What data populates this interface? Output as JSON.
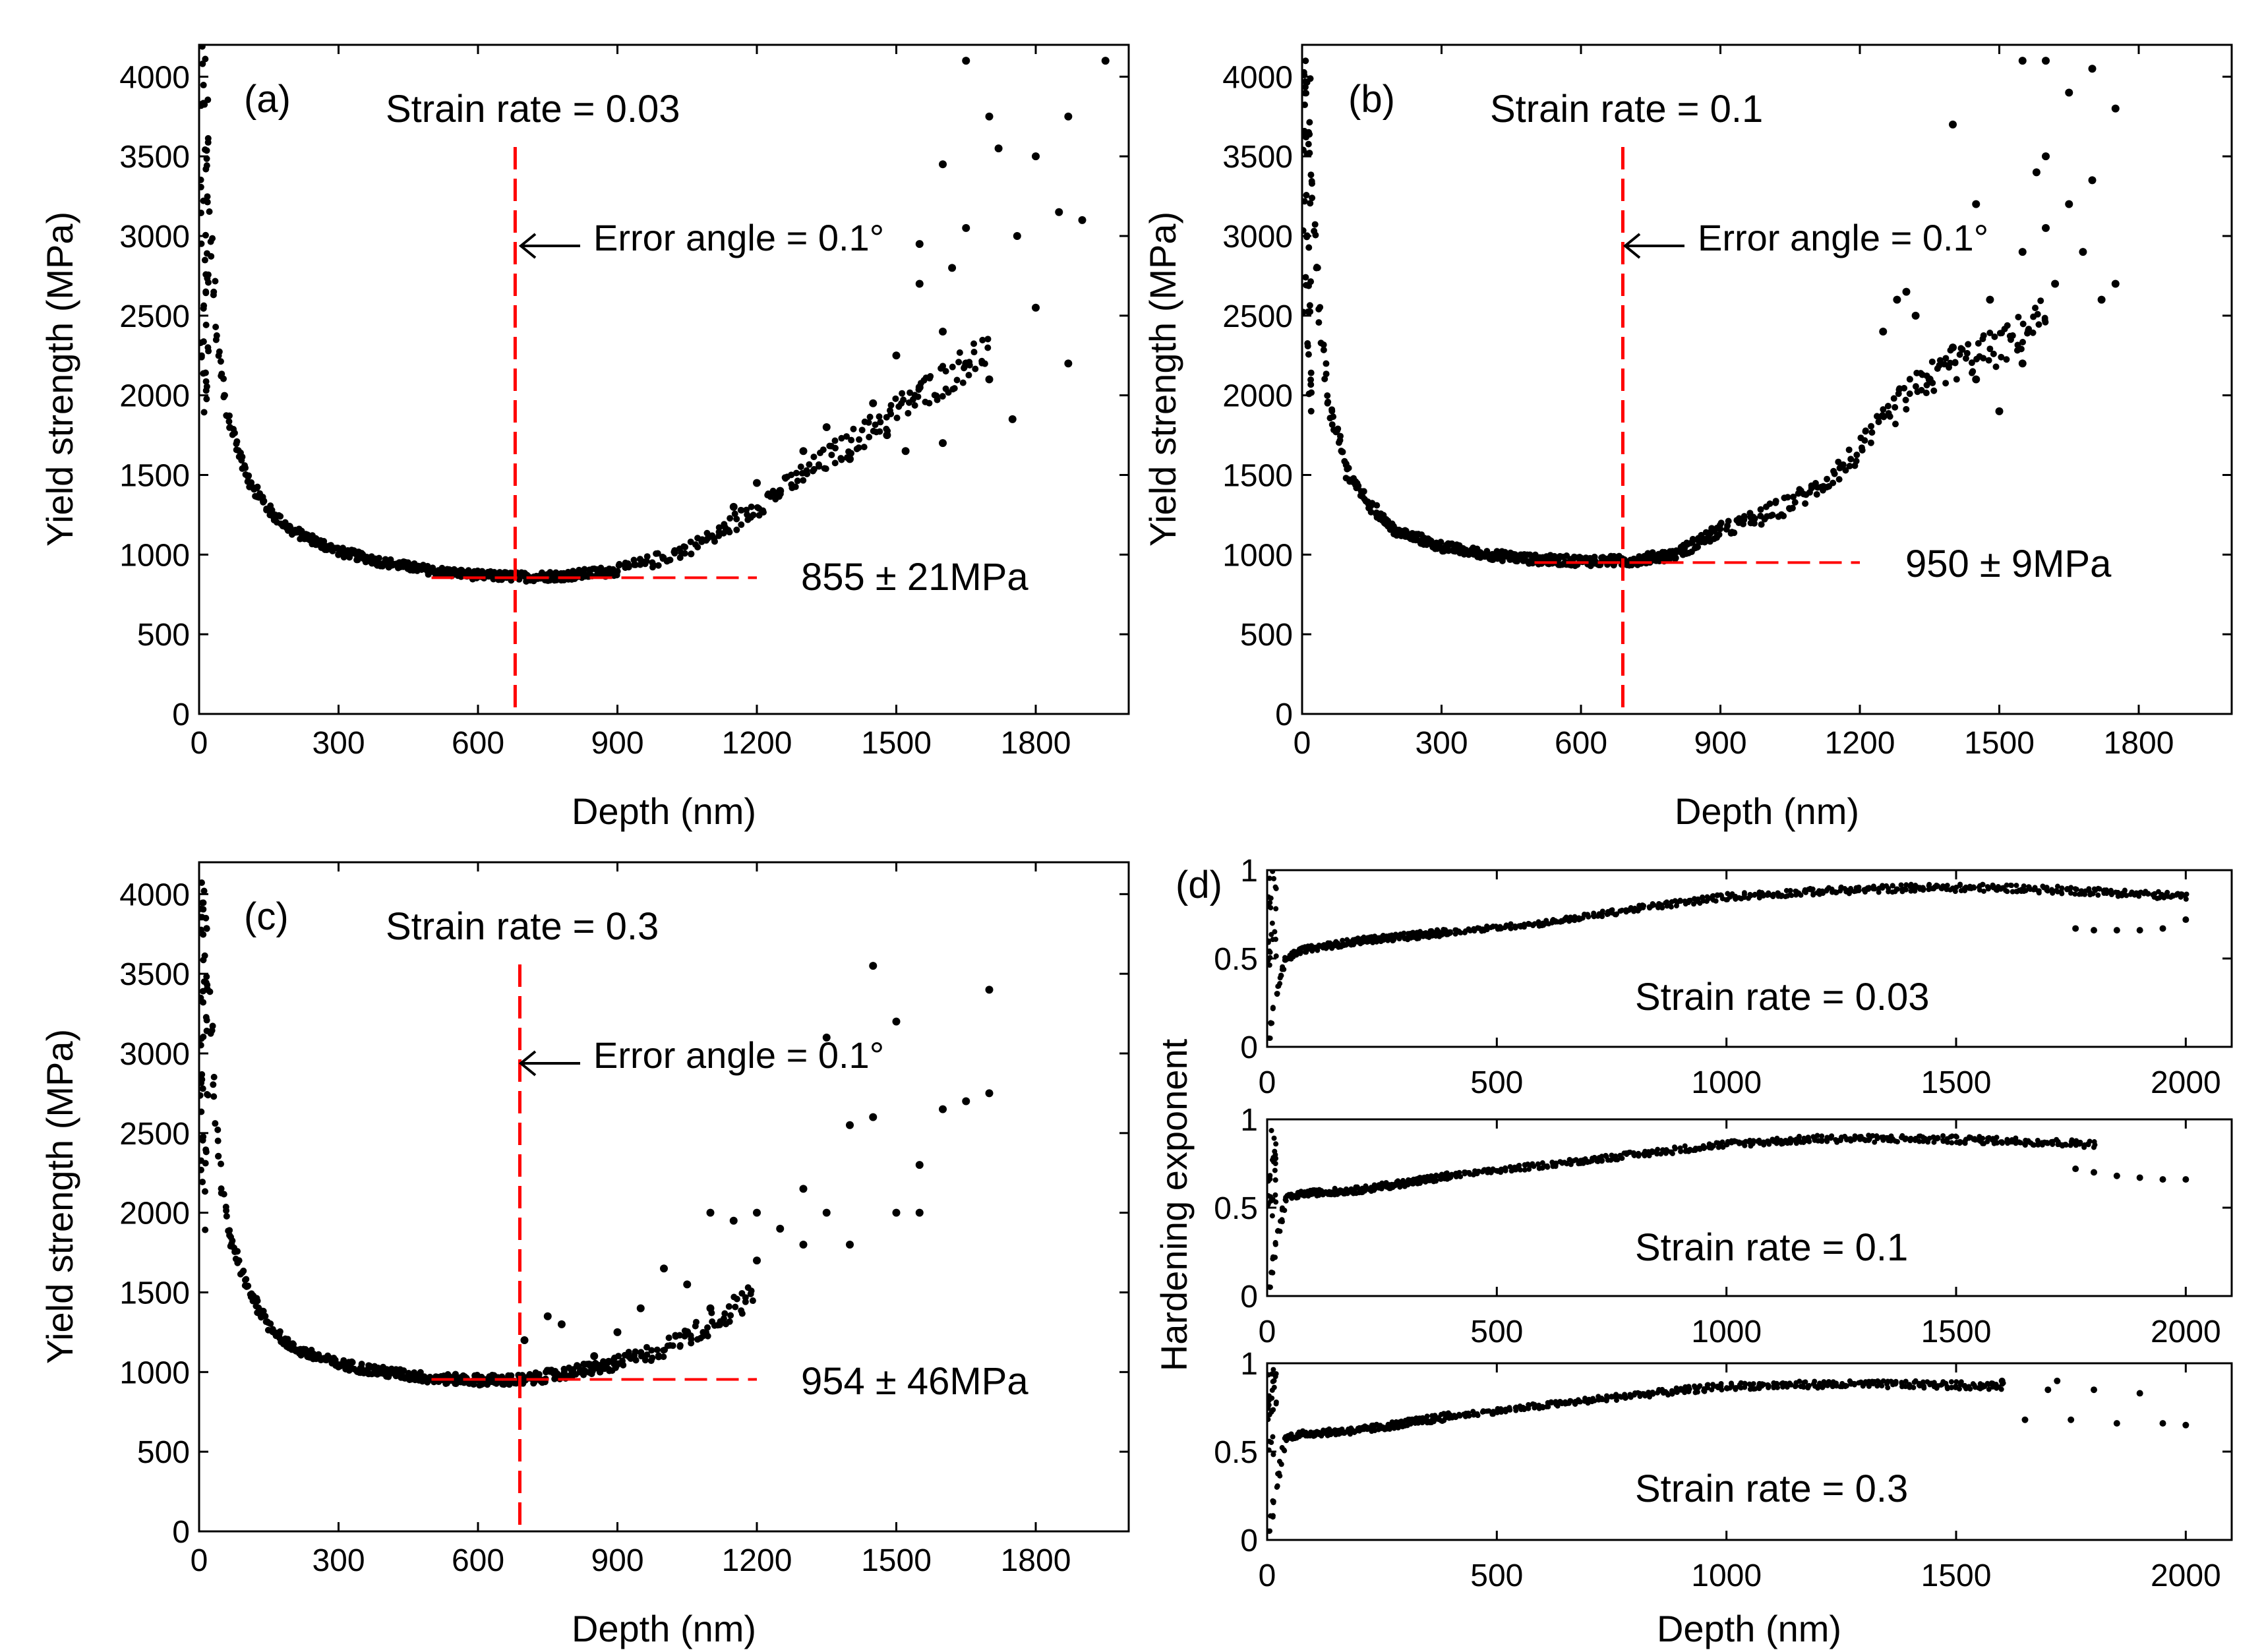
{
  "figure": {
    "colors": {
      "points": "#000000",
      "ref_line": "#ff0000",
      "axes": "#000000",
      "background": "#ffffff"
    },
    "shared_labels": {
      "hardening_ylabel": "Hardening exponent"
    }
  },
  "chart_data": [
    {
      "id": "a",
      "type": "scatter",
      "panel_label": "(a)",
      "strain_rate_label": "Strain rate = 0.03",
      "error_angle_label": "Error angle = 0.1°",
      "result_label": "855 ± 21MPa",
      "xlabel": "Depth (nm)",
      "ylabel": "Yield strength (MPa)",
      "xlim": [
        0,
        2000
      ],
      "ylim": [
        0,
        4200
      ],
      "xticks": [
        0,
        300,
        600,
        900,
        1200,
        1500,
        1800
      ],
      "yticks": [
        0,
        500,
        1000,
        1500,
        2000,
        2500,
        3000,
        3500,
        4000
      ],
      "vline_depth": 680,
      "hline": {
        "value": 855,
        "from": 500,
        "to": 1200
      },
      "trend": [
        [
          8,
          3800
        ],
        [
          20,
          3200
        ],
        [
          40,
          2300
        ],
        [
          60,
          1900
        ],
        [
          100,
          1500
        ],
        [
          150,
          1280
        ],
        [
          200,
          1150
        ],
        [
          300,
          1020
        ],
        [
          400,
          950
        ],
        [
          500,
          900
        ],
        [
          600,
          870
        ],
        [
          700,
          860
        ],
        [
          800,
          870
        ],
        [
          900,
          900
        ],
        [
          1000,
          980
        ],
        [
          1100,
          1100
        ],
        [
          1200,
          1300
        ],
        [
          1300,
          1500
        ],
        [
          1400,
          1700
        ],
        [
          1500,
          1900
        ],
        [
          1600,
          2100
        ],
        [
          1700,
          2300
        ]
      ],
      "scattered_points": [
        [
          1550,
          2950
        ],
        [
          1600,
          3450
        ],
        [
          1650,
          3050
        ],
        [
          1700,
          3750
        ],
        [
          1720,
          3550
        ],
        [
          1760,
          3000
        ],
        [
          1800,
          3500
        ],
        [
          1850,
          3150
        ],
        [
          1870,
          3750
        ],
        [
          1900,
          3100
        ],
        [
          1650,
          4100
        ],
        [
          1800,
          2550
        ],
        [
          1870,
          2200
        ],
        [
          1950,
          4100
        ],
        [
          1700,
          2100
        ],
        [
          1650,
          2200
        ],
        [
          1600,
          2400
        ],
        [
          1750,
          1850
        ],
        [
          1500,
          2250
        ],
        [
          1550,
          2050
        ],
        [
          1450,
          1950
        ],
        [
          1480,
          1750
        ],
        [
          1520,
          1650
        ],
        [
          1600,
          1700
        ],
        [
          1400,
          1600
        ],
        [
          1350,
          1800
        ],
        [
          1300,
          1650
        ],
        [
          1250,
          1400
        ],
        [
          1200,
          1450
        ],
        [
          1150,
          1300
        ],
        [
          1550,
          2700
        ],
        [
          1620,
          2800
        ]
      ]
    },
    {
      "id": "b",
      "type": "scatter",
      "panel_label": "(b)",
      "strain_rate_label": "Strain rate = 0.1",
      "error_angle_label": "Error angle = 0.1°",
      "result_label": "950 ± 9MPa",
      "xlabel": "Depth (nm)",
      "ylabel": "Yield strength (MPa)",
      "xlim": [
        0,
        2000
      ],
      "ylim": [
        0,
        4200
      ],
      "xticks": [
        0,
        300,
        600,
        900,
        1200,
        1500,
        1800
      ],
      "yticks": [
        0,
        500,
        1000,
        1500,
        2000,
        2500,
        3000,
        3500,
        4000
      ],
      "vline_depth": 690,
      "hline": {
        "value": 950,
        "from": 500,
        "to": 1200
      },
      "trend": [
        [
          8,
          3900
        ],
        [
          20,
          3300
        ],
        [
          40,
          2400
        ],
        [
          60,
          1900
        ],
        [
          100,
          1500
        ],
        [
          150,
          1300
        ],
        [
          200,
          1150
        ],
        [
          300,
          1050
        ],
        [
          400,
          1000
        ],
        [
          500,
          970
        ],
        [
          600,
          960
        ],
        [
          700,
          960
        ],
        [
          800,
          1000
        ],
        [
          900,
          1150
        ],
        [
          1000,
          1250
        ],
        [
          1100,
          1400
        ],
        [
          1200,
          1650
        ],
        [
          1300,
          2000
        ],
        [
          1400,
          2200
        ],
        [
          1500,
          2300
        ],
        [
          1600,
          2500
        ]
      ],
      "scattered_points": [
        [
          1300,
          2650
        ],
        [
          1280,
          2600
        ],
        [
          1320,
          2500
        ],
        [
          1250,
          2400
        ],
        [
          1400,
          2300
        ],
        [
          1450,
          2100
        ],
        [
          1500,
          1900
        ],
        [
          1550,
          2200
        ],
        [
          1550,
          2900
        ],
        [
          1600,
          3500
        ],
        [
          1650,
          3900
        ],
        [
          1700,
          4050
        ],
        [
          1750,
          3800
        ],
        [
          1700,
          3350
        ],
        [
          1600,
          3050
        ],
        [
          1450,
          3200
        ],
        [
          1400,
          3700
        ],
        [
          1550,
          4100
        ],
        [
          1620,
          2700
        ],
        [
          1680,
          2900
        ],
        [
          1720,
          2600
        ],
        [
          1750,
          2700
        ],
        [
          1480,
          2600
        ],
        [
          1350,
          2100
        ],
        [
          1650,
          3200
        ],
        [
          1580,
          3400
        ],
        [
          1600,
          4100
        ]
      ]
    },
    {
      "id": "c",
      "type": "scatter",
      "panel_label": "(c)",
      "strain_rate_label": "Strain rate = 0.3",
      "error_angle_label": "Error angle = 0.1°",
      "result_label": "954 ± 46MPa",
      "xlabel": "Depth (nm)",
      "ylabel": "Yield strength (MPa)",
      "xlim": [
        0,
        2000
      ],
      "ylim": [
        0,
        4200
      ],
      "xticks": [
        0,
        300,
        600,
        900,
        1200,
        1500,
        1800
      ],
      "yticks": [
        0,
        500,
        1000,
        1500,
        2000,
        2500,
        3000,
        3500,
        4000
      ],
      "vline_depth": 690,
      "hline": {
        "value": 954,
        "from": 500,
        "to": 1200
      },
      "trend": [
        [
          8,
          4000
        ],
        [
          20,
          3400
        ],
        [
          40,
          2400
        ],
        [
          60,
          1900
        ],
        [
          100,
          1550
        ],
        [
          150,
          1300
        ],
        [
          200,
          1150
        ],
        [
          300,
          1050
        ],
        [
          400,
          1000
        ],
        [
          500,
          960
        ],
        [
          600,
          950
        ],
        [
          700,
          950
        ],
        [
          800,
          1000
        ],
        [
          900,
          1050
        ],
        [
          1000,
          1150
        ],
        [
          1100,
          1300
        ],
        [
          1200,
          1500
        ]
      ],
      "scattered_points": [
        [
          700,
          1200
        ],
        [
          750,
          1350
        ],
        [
          780,
          1300
        ],
        [
          850,
          1100
        ],
        [
          900,
          1250
        ],
        [
          950,
          1400
        ],
        [
          1000,
          1650
        ],
        [
          1050,
          1550
        ],
        [
          1100,
          2000
        ],
        [
          1150,
          1950
        ],
        [
          1200,
          2000
        ],
        [
          1250,
          1900
        ],
        [
          1300,
          2150
        ],
        [
          1350,
          2000
        ],
        [
          1400,
          2550
        ],
        [
          1450,
          2600
        ],
        [
          1450,
          3550
        ],
        [
          1500,
          3200
        ],
        [
          1550,
          2300
        ],
        [
          1600,
          2650
        ],
        [
          1650,
          2700
        ],
        [
          1700,
          3400
        ],
        [
          1700,
          2750
        ],
        [
          1500,
          2000
        ],
        [
          1400,
          1800
        ],
        [
          1200,
          1700
        ],
        [
          1100,
          1400
        ],
        [
          1050,
          1250
        ],
        [
          1300,
          1800
        ],
        [
          1550,
          2000
        ],
        [
          1350,
          3100
        ]
      ]
    },
    {
      "id": "d",
      "type": "scatter",
      "panel_label": "(d)",
      "ylabel": "Hardening exponent",
      "xlabel": "Depth (nm)",
      "subplots": [
        {
          "strain_rate_label": "Strain rate = 0.03",
          "xlim": [
            0,
            2100
          ],
          "ylim": [
            0,
            1
          ],
          "xticks": [
            0,
            500,
            1000,
            1500,
            2000
          ],
          "yticks": [
            0,
            0.5,
            1
          ],
          "trend": [
            [
              5,
              0.05
            ],
            [
              20,
              0.3
            ],
            [
              40,
              0.5
            ],
            [
              80,
              0.55
            ],
            [
              200,
              0.6
            ],
            [
              400,
              0.65
            ],
            [
              600,
              0.7
            ],
            [
              800,
              0.78
            ],
            [
              1000,
              0.85
            ],
            [
              1200,
              0.88
            ],
            [
              1400,
              0.9
            ],
            [
              1600,
              0.9
            ],
            [
              1800,
              0.88
            ],
            [
              2000,
              0.85
            ]
          ],
          "scattered_points": [
            [
              1760,
              0.67
            ],
            [
              1800,
              0.66
            ],
            [
              1850,
              0.66
            ],
            [
              1900,
              0.66
            ],
            [
              1950,
              0.67
            ],
            [
              2000,
              0.72
            ]
          ]
        },
        {
          "strain_rate_label": "Strain rate = 0.1",
          "xlim": [
            0,
            2100
          ],
          "ylim": [
            0,
            1
          ],
          "xticks": [
            0,
            500,
            1000,
            1500,
            2000
          ],
          "yticks": [
            0,
            0.5,
            1
          ],
          "trend": [
            [
              5,
              0.05
            ],
            [
              20,
              0.3
            ],
            [
              40,
              0.55
            ],
            [
              80,
              0.58
            ],
            [
              200,
              0.6
            ],
            [
              400,
              0.68
            ],
            [
              600,
              0.74
            ],
            [
              800,
              0.8
            ],
            [
              1000,
              0.86
            ],
            [
              1200,
              0.89
            ],
            [
              1400,
              0.89
            ],
            [
              1600,
              0.88
            ],
            [
              1800,
              0.86
            ]
          ],
          "scattered_points": [
            [
              1760,
              0.72
            ],
            [
              1800,
              0.7
            ],
            [
              1850,
              0.68
            ],
            [
              1900,
              0.67
            ],
            [
              1950,
              0.66
            ],
            [
              2000,
              0.66
            ]
          ]
        },
        {
          "strain_rate_label": "Strain rate = 0.3",
          "xlim": [
            0,
            2100
          ],
          "ylim": [
            0,
            1
          ],
          "xticks": [
            0,
            500,
            1000,
            1500,
            2000
          ],
          "yticks": [
            0,
            0.5,
            1
          ],
          "trend": [
            [
              5,
              0.05
            ],
            [
              20,
              0.3
            ],
            [
              40,
              0.58
            ],
            [
              80,
              0.6
            ],
            [
              200,
              0.62
            ],
            [
              400,
              0.7
            ],
            [
              600,
              0.76
            ],
            [
              800,
              0.82
            ],
            [
              1000,
              0.87
            ],
            [
              1200,
              0.88
            ],
            [
              1400,
              0.88
            ],
            [
              1600,
              0.87
            ]
          ],
          "scattered_points": [
            [
              1650,
              0.68
            ],
            [
              1700,
              0.85
            ],
            [
              1750,
              0.68
            ],
            [
              1800,
              0.85
            ],
            [
              1850,
              0.66
            ],
            [
              1900,
              0.83
            ],
            [
              1950,
              0.66
            ],
            [
              2000,
              0.65
            ],
            [
              1600,
              0.9
            ],
            [
              1720,
              0.9
            ]
          ]
        }
      ]
    }
  ]
}
